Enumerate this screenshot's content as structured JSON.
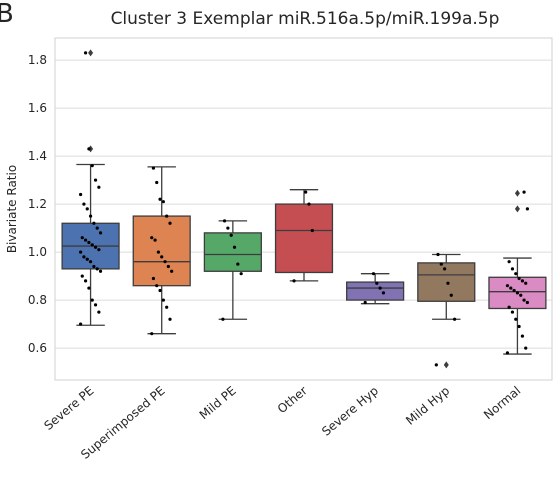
{
  "chart_data": {
    "type": "box",
    "panel": "B",
    "title": "Cluster 3 Exemplar miR.516a.5p/miR.199a.5p",
    "y_label": "Bivariate Ratio",
    "categories": [
      "Severe PE",
      "Superimposed PE",
      "Mild PE",
      "Other",
      "Severe Hyp",
      "Mild Hyp",
      "Normal"
    ],
    "ylim": [
      0.467,
      1.892
    ],
    "yticks": [
      0.6,
      0.8,
      {
        "value": 1,
        "label": "1.0"
      },
      1.2,
      1.4,
      1.6,
      1.8
    ],
    "grid": true,
    "boxes": [
      {
        "color": "#4c72b0",
        "whisker_low": 0.695,
        "q1": 0.93,
        "median": 1.025,
        "q3": 1.12,
        "whisker_high": 1.365,
        "outliers": [
          1.43,
          1.83
        ],
        "points": [
          0.7,
          0.75,
          0.78,
          0.8,
          0.85,
          0.88,
          0.9,
          0.92,
          0.93,
          0.94,
          0.96,
          0.97,
          0.98,
          1.0,
          1.01,
          1.02,
          1.03,
          1.04,
          1.05,
          1.06,
          1.08,
          1.1,
          1.12,
          1.15,
          1.18,
          1.2,
          1.24,
          1.27,
          1.3,
          1.36,
          1.43,
          1.83
        ]
      },
      {
        "color": "#dd8452",
        "whisker_low": 0.66,
        "q1": 0.86,
        "median": 0.96,
        "q3": 1.15,
        "whisker_high": 1.355,
        "outliers": [],
        "points": [
          0.66,
          0.72,
          0.77,
          0.8,
          0.84,
          0.86,
          0.89,
          0.92,
          0.94,
          0.96,
          0.98,
          1.0,
          1.05,
          1.06,
          1.12,
          1.15,
          1.21,
          1.22,
          1.29,
          1.35
        ]
      },
      {
        "color": "#55a868",
        "whisker_low": 0.72,
        "q1": 0.92,
        "median": 0.99,
        "q3": 1.08,
        "whisker_high": 1.13,
        "outliers": [],
        "points": [
          0.72,
          0.91,
          0.95,
          1.02,
          1.07,
          1.1,
          1.13
        ]
      },
      {
        "color": "#c44e52",
        "whisker_low": 0.88,
        "q1": 0.915,
        "median": 1.09,
        "q3": 1.2,
        "whisker_high": 1.26,
        "outliers": [],
        "points": [
          0.88,
          1.09,
          1.2,
          1.25
        ]
      },
      {
        "color": "#8172b3",
        "whisker_low": 0.785,
        "q1": 0.8,
        "median": 0.85,
        "q3": 0.875,
        "whisker_high": 0.91,
        "outliers": [],
        "points": [
          0.79,
          0.83,
          0.85,
          0.87,
          0.91
        ]
      },
      {
        "color": "#937860",
        "whisker_low": 0.72,
        "q1": 0.795,
        "median": 0.905,
        "q3": 0.955,
        "whisker_high": 0.99,
        "outliers": [
          0.53
        ],
        "points": [
          0.53,
          0.72,
          0.82,
          0.87,
          0.93,
          0.95,
          0.99
        ]
      },
      {
        "color": "#da8bc3",
        "whisker_low": 0.575,
        "q1": 0.765,
        "median": 0.835,
        "q3": 0.895,
        "whisker_high": 0.975,
        "outliers": [
          1.18,
          1.245
        ],
        "points": [
          0.58,
          0.6,
          0.65,
          0.69,
          0.72,
          0.75,
          0.77,
          0.79,
          0.8,
          0.82,
          0.83,
          0.84,
          0.85,
          0.86,
          0.87,
          0.88,
          0.89,
          0.91,
          0.93,
          0.96,
          1.18,
          1.25
        ]
      }
    ]
  }
}
